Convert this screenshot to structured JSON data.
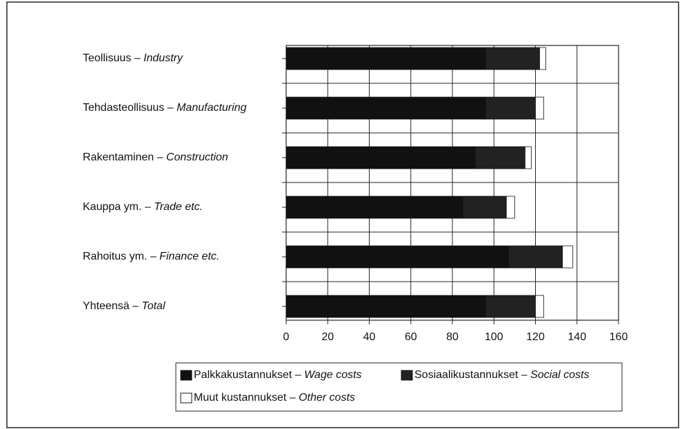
{
  "chart_data": {
    "type": "stacked-barh",
    "categories": [
      [
        "Teollisuus –",
        "Industry"
      ],
      [
        "Tehdasteollisuus –",
        "Manufacturing"
      ],
      [
        "Rakentaminen –",
        "Construction"
      ],
      [
        "Kauppa ym. –",
        "Trade etc."
      ],
      [
        "Rahoitus ym. –",
        "Finance etc."
      ],
      [
        "Yhteensä –",
        "Total"
      ]
    ],
    "series": [
      {
        "name": [
          "Palkkakustannukset –",
          "Wage costs"
        ],
        "color": "#111111",
        "values": [
          96,
          96,
          91,
          85,
          107,
          96
        ]
      },
      {
        "name": [
          "Sosiaalikustannukset –",
          "Social costs"
        ],
        "color": "#222222",
        "values": [
          26,
          24,
          24,
          21,
          26,
          24
        ]
      },
      {
        "name": [
          "Muut kustannukset –",
          "Other costs"
        ],
        "color": "#ffffff",
        "values": [
          3,
          4,
          3,
          4,
          5,
          4
        ]
      }
    ],
    "xlim": [
      0,
      160
    ],
    "xticks": [
      0,
      20,
      40,
      60,
      80,
      100,
      120,
      140,
      160
    ],
    "grid": true
  }
}
